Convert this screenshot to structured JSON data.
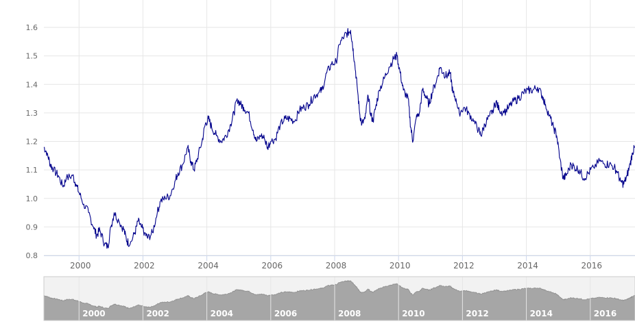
{
  "chart_data": {
    "type": "line",
    "title": "",
    "xlabel": "",
    "ylabel": "",
    "ylim": [
      0.8,
      1.6
    ],
    "xlim": [
      1998.9,
      2017.4
    ],
    "grid": true,
    "legend": "none",
    "y_ticks": [
      "0.8",
      "0.9",
      "1.0",
      "1.1",
      "1.2",
      "1.3",
      "1.4",
      "1.5",
      "1.6"
    ],
    "x_ticks": [
      "2000",
      "2002",
      "2004",
      "2006",
      "2008",
      "2010",
      "2012",
      "2014",
      "2016"
    ],
    "navigator_ticks": [
      "2000",
      "2002",
      "2004",
      "2006",
      "2008",
      "2010",
      "2012",
      "2014",
      "2016"
    ],
    "series": [
      {
        "color": "#00008b",
        "points": [
          [
            1998.9,
            1.18
          ],
          [
            1999.0,
            1.16
          ],
          [
            1999.1,
            1.12
          ],
          [
            1999.2,
            1.1
          ],
          [
            1999.35,
            1.08
          ],
          [
            1999.5,
            1.04
          ],
          [
            1999.6,
            1.07
          ],
          [
            1999.8,
            1.08
          ],
          [
            1999.9,
            1.05
          ],
          [
            2000.0,
            1.02
          ],
          [
            2000.15,
            0.98
          ],
          [
            2000.3,
            0.95
          ],
          [
            2000.45,
            0.9
          ],
          [
            2000.55,
            0.87
          ],
          [
            2000.65,
            0.89
          ],
          [
            2000.8,
            0.84
          ],
          [
            2000.9,
            0.83
          ],
          [
            2001.0,
            0.9
          ],
          [
            2001.1,
            0.95
          ],
          [
            2001.25,
            0.92
          ],
          [
            2001.4,
            0.89
          ],
          [
            2001.5,
            0.85
          ],
          [
            2001.6,
            0.84
          ],
          [
            2001.75,
            0.88
          ],
          [
            2001.85,
            0.92
          ],
          [
            2001.95,
            0.9
          ],
          [
            2002.05,
            0.88
          ],
          [
            2002.15,
            0.86
          ],
          [
            2002.3,
            0.88
          ],
          [
            2002.45,
            0.95
          ],
          [
            2002.55,
            0.99
          ],
          [
            2002.7,
            1.0
          ],
          [
            2002.85,
            1.01
          ],
          [
            2003.0,
            1.06
          ],
          [
            2003.1,
            1.09
          ],
          [
            2003.25,
            1.12
          ],
          [
            2003.4,
            1.18
          ],
          [
            2003.5,
            1.13
          ],
          [
            2003.6,
            1.1
          ],
          [
            2003.7,
            1.14
          ],
          [
            2003.85,
            1.2
          ],
          [
            2003.95,
            1.26
          ],
          [
            2004.05,
            1.28
          ],
          [
            2004.15,
            1.25
          ],
          [
            2004.3,
            1.22
          ],
          [
            2004.45,
            1.2
          ],
          [
            2004.6,
            1.22
          ],
          [
            2004.75,
            1.26
          ],
          [
            2004.85,
            1.3
          ],
          [
            2004.95,
            1.35
          ],
          [
            2005.05,
            1.33
          ],
          [
            2005.15,
            1.32
          ],
          [
            2005.3,
            1.3
          ],
          [
            2005.45,
            1.24
          ],
          [
            2005.55,
            1.2
          ],
          [
            2005.7,
            1.22
          ],
          [
            2005.8,
            1.21
          ],
          [
            2005.9,
            1.18
          ],
          [
            2006.0,
            1.2
          ],
          [
            2006.15,
            1.21
          ],
          [
            2006.3,
            1.26
          ],
          [
            2006.45,
            1.28
          ],
          [
            2006.6,
            1.28
          ],
          [
            2006.75,
            1.27
          ],
          [
            2006.9,
            1.31
          ],
          [
            2007.05,
            1.32
          ],
          [
            2007.2,
            1.33
          ],
          [
            2007.35,
            1.36
          ],
          [
            2007.5,
            1.37
          ],
          [
            2007.6,
            1.38
          ],
          [
            2007.75,
            1.44
          ],
          [
            2007.9,
            1.47
          ],
          [
            2008.05,
            1.48
          ],
          [
            2008.15,
            1.54
          ],
          [
            2008.3,
            1.57
          ],
          [
            2008.4,
            1.58
          ],
          [
            2008.5,
            1.59
          ],
          [
            2008.55,
            1.55
          ],
          [
            2008.62,
            1.48
          ],
          [
            2008.7,
            1.4
          ],
          [
            2008.78,
            1.3
          ],
          [
            2008.85,
            1.26
          ],
          [
            2008.95,
            1.28
          ],
          [
            2009.05,
            1.36
          ],
          [
            2009.12,
            1.3
          ],
          [
            2009.2,
            1.27
          ],
          [
            2009.3,
            1.33
          ],
          [
            2009.4,
            1.38
          ],
          [
            2009.55,
            1.42
          ],
          [
            2009.7,
            1.46
          ],
          [
            2009.85,
            1.49
          ],
          [
            2009.95,
            1.5
          ],
          [
            2010.05,
            1.44
          ],
          [
            2010.15,
            1.38
          ],
          [
            2010.3,
            1.35
          ],
          [
            2010.38,
            1.25
          ],
          [
            2010.45,
            1.2
          ],
          [
            2010.55,
            1.28
          ],
          [
            2010.65,
            1.3
          ],
          [
            2010.75,
            1.38
          ],
          [
            2010.85,
            1.36
          ],
          [
            2010.95,
            1.33
          ],
          [
            2011.05,
            1.37
          ],
          [
            2011.2,
            1.42
          ],
          [
            2011.3,
            1.46
          ],
          [
            2011.4,
            1.44
          ],
          [
            2011.5,
            1.43
          ],
          [
            2011.62,
            1.44
          ],
          [
            2011.7,
            1.37
          ],
          [
            2011.8,
            1.35
          ],
          [
            2011.9,
            1.3
          ],
          [
            2012.05,
            1.32
          ],
          [
            2012.2,
            1.3
          ],
          [
            2012.35,
            1.27
          ],
          [
            2012.5,
            1.24
          ],
          [
            2012.58,
            1.22
          ],
          [
            2012.7,
            1.26
          ],
          [
            2012.85,
            1.29
          ],
          [
            2012.95,
            1.31
          ],
          [
            2013.05,
            1.34
          ],
          [
            2013.15,
            1.31
          ],
          [
            2013.3,
            1.3
          ],
          [
            2013.45,
            1.32
          ],
          [
            2013.6,
            1.34
          ],
          [
            2013.75,
            1.35
          ],
          [
            2013.9,
            1.37
          ],
          [
            2014.05,
            1.38
          ],
          [
            2014.2,
            1.38
          ],
          [
            2014.35,
            1.39
          ],
          [
            2014.5,
            1.36
          ],
          [
            2014.6,
            1.33
          ],
          [
            2014.72,
            1.29
          ],
          [
            2014.85,
            1.25
          ],
          [
            2014.95,
            1.22
          ],
          [
            2015.05,
            1.14
          ],
          [
            2015.15,
            1.07
          ],
          [
            2015.25,
            1.08
          ],
          [
            2015.4,
            1.12
          ],
          [
            2015.5,
            1.11
          ],
          [
            2015.65,
            1.1
          ],
          [
            2015.8,
            1.07
          ],
          [
            2015.95,
            1.09
          ],
          [
            2016.1,
            1.11
          ],
          [
            2016.3,
            1.13
          ],
          [
            2016.45,
            1.12
          ],
          [
            2016.6,
            1.12
          ],
          [
            2016.75,
            1.11
          ],
          [
            2016.85,
            1.09
          ],
          [
            2016.95,
            1.06
          ],
          [
            2017.05,
            1.05
          ],
          [
            2017.15,
            1.08
          ],
          [
            2017.25,
            1.12
          ],
          [
            2017.32,
            1.16
          ],
          [
            2017.4,
            1.18
          ]
        ]
      }
    ]
  }
}
